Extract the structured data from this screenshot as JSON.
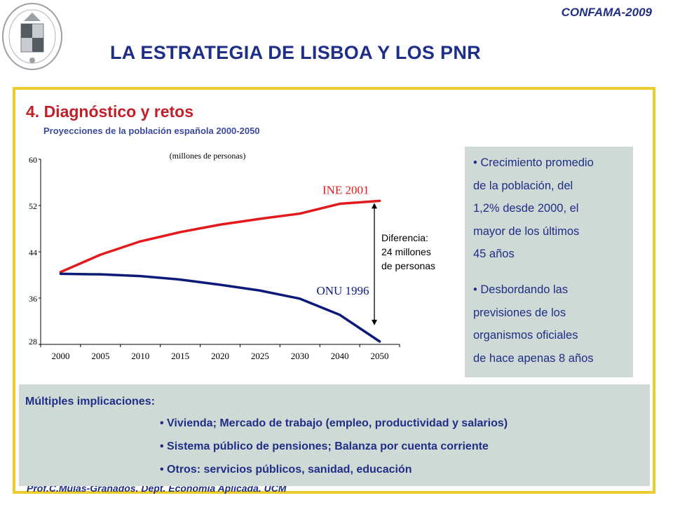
{
  "header": {
    "tag": "CONFAMA-2009",
    "title": "LA ESTRATEGIA DE LISBOA Y LOS PNR"
  },
  "section": {
    "title": "4. Diagnóstico y retos",
    "subtitle": "Proyecciones de la población española 2000-2050"
  },
  "chart_data": {
    "type": "line",
    "title": "(millones  de personas)",
    "x": [
      "2000",
      "2005",
      "2010",
      "2015",
      "2020",
      "2025",
      "2030",
      "2040",
      "2050"
    ],
    "ylim": [
      28,
      60
    ],
    "yticks": [
      "60",
      "52",
      "44",
      "36",
      "28"
    ],
    "series": [
      {
        "name": "INE 2001",
        "color": "#e3191b",
        "values": [
          40.5,
          43.5,
          45.8,
          47.4,
          48.7,
          49.7,
          50.6,
          52.3,
          52.8
        ]
      },
      {
        "name": "ONU 1996",
        "color": "#0c1a78",
        "values": [
          40.2,
          40.1,
          39.8,
          39.2,
          38.3,
          37.3,
          35.9,
          33.1,
          28.5
        ]
      }
    ],
    "annotation": [
      "Diferencia:",
      "24 millones",
      "de personas"
    ]
  },
  "side_box": {
    "item1": [
      "• Crecimiento promedio",
      "de la población, del",
      "1,2% desde 2000, el",
      "mayor de los últimos",
      "45 años"
    ],
    "item2": [
      "• Desbordando las",
      "previsiones de los",
      "organismos oficiales",
      "de hace apenas 8 años"
    ]
  },
  "implications": {
    "title": "Múltiples implicaciones:",
    "items": [
      "• Vivienda; Mercado de trabajo (empleo, productividad y salarios)",
      "• Sistema público de pensiones; Balanza por cuenta corriente",
      "• Otros: servicios públicos, sanidad, educación"
    ]
  },
  "footer": {
    "text": "Prof.C.Mulas-Granados. Dept. Economía Aplicada. UCM"
  }
}
